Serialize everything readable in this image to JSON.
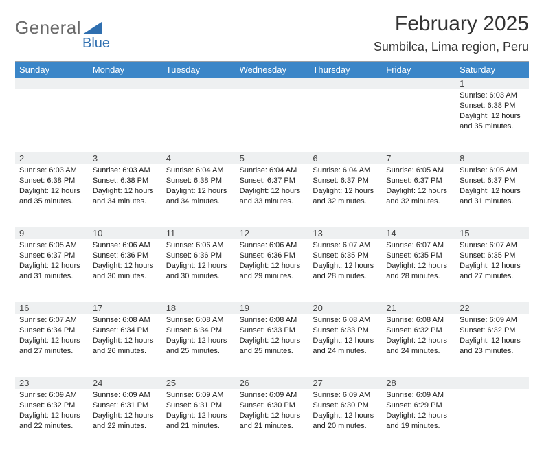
{
  "brand": {
    "part1": "General",
    "part2": "Blue"
  },
  "title": "February 2025",
  "location": "Sumbilca, Lima region, Peru",
  "colors": {
    "header_bar": "#3b86c8",
    "date_strip": "#eef0f1",
    "border": "#9aa0a6",
    "logo_gray": "#6a6a6a",
    "logo_blue": "#2f6fb0"
  },
  "daynames": [
    "Sunday",
    "Monday",
    "Tuesday",
    "Wednesday",
    "Thursday",
    "Friday",
    "Saturday"
  ],
  "weeks": [
    [
      null,
      null,
      null,
      null,
      null,
      null,
      {
        "n": "1",
        "sr": "6:03 AM",
        "ss": "6:38 PM",
        "dl": "12 hours and 35 minutes."
      }
    ],
    [
      {
        "n": "2",
        "sr": "6:03 AM",
        "ss": "6:38 PM",
        "dl": "12 hours and 35 minutes."
      },
      {
        "n": "3",
        "sr": "6:03 AM",
        "ss": "6:38 PM",
        "dl": "12 hours and 34 minutes."
      },
      {
        "n": "4",
        "sr": "6:04 AM",
        "ss": "6:38 PM",
        "dl": "12 hours and 34 minutes."
      },
      {
        "n": "5",
        "sr": "6:04 AM",
        "ss": "6:37 PM",
        "dl": "12 hours and 33 minutes."
      },
      {
        "n": "6",
        "sr": "6:04 AM",
        "ss": "6:37 PM",
        "dl": "12 hours and 32 minutes."
      },
      {
        "n": "7",
        "sr": "6:05 AM",
        "ss": "6:37 PM",
        "dl": "12 hours and 32 minutes."
      },
      {
        "n": "8",
        "sr": "6:05 AM",
        "ss": "6:37 PM",
        "dl": "12 hours and 31 minutes."
      }
    ],
    [
      {
        "n": "9",
        "sr": "6:05 AM",
        "ss": "6:37 PM",
        "dl": "12 hours and 31 minutes."
      },
      {
        "n": "10",
        "sr": "6:06 AM",
        "ss": "6:36 PM",
        "dl": "12 hours and 30 minutes."
      },
      {
        "n": "11",
        "sr": "6:06 AM",
        "ss": "6:36 PM",
        "dl": "12 hours and 30 minutes."
      },
      {
        "n": "12",
        "sr": "6:06 AM",
        "ss": "6:36 PM",
        "dl": "12 hours and 29 minutes."
      },
      {
        "n": "13",
        "sr": "6:07 AM",
        "ss": "6:35 PM",
        "dl": "12 hours and 28 minutes."
      },
      {
        "n": "14",
        "sr": "6:07 AM",
        "ss": "6:35 PM",
        "dl": "12 hours and 28 minutes."
      },
      {
        "n": "15",
        "sr": "6:07 AM",
        "ss": "6:35 PM",
        "dl": "12 hours and 27 minutes."
      }
    ],
    [
      {
        "n": "16",
        "sr": "6:07 AM",
        "ss": "6:34 PM",
        "dl": "12 hours and 27 minutes."
      },
      {
        "n": "17",
        "sr": "6:08 AM",
        "ss": "6:34 PM",
        "dl": "12 hours and 26 minutes."
      },
      {
        "n": "18",
        "sr": "6:08 AM",
        "ss": "6:34 PM",
        "dl": "12 hours and 25 minutes."
      },
      {
        "n": "19",
        "sr": "6:08 AM",
        "ss": "6:33 PM",
        "dl": "12 hours and 25 minutes."
      },
      {
        "n": "20",
        "sr": "6:08 AM",
        "ss": "6:33 PM",
        "dl": "12 hours and 24 minutes."
      },
      {
        "n": "21",
        "sr": "6:08 AM",
        "ss": "6:32 PM",
        "dl": "12 hours and 24 minutes."
      },
      {
        "n": "22",
        "sr": "6:09 AM",
        "ss": "6:32 PM",
        "dl": "12 hours and 23 minutes."
      }
    ],
    [
      {
        "n": "23",
        "sr": "6:09 AM",
        "ss": "6:32 PM",
        "dl": "12 hours and 22 minutes."
      },
      {
        "n": "24",
        "sr": "6:09 AM",
        "ss": "6:31 PM",
        "dl": "12 hours and 22 minutes."
      },
      {
        "n": "25",
        "sr": "6:09 AM",
        "ss": "6:31 PM",
        "dl": "12 hours and 21 minutes."
      },
      {
        "n": "26",
        "sr": "6:09 AM",
        "ss": "6:30 PM",
        "dl": "12 hours and 21 minutes."
      },
      {
        "n": "27",
        "sr": "6:09 AM",
        "ss": "6:30 PM",
        "dl": "12 hours and 20 minutes."
      },
      {
        "n": "28",
        "sr": "6:09 AM",
        "ss": "6:29 PM",
        "dl": "12 hours and 19 minutes."
      },
      null
    ]
  ],
  "labels": {
    "sunrise": "Sunrise:",
    "sunset": "Sunset:",
    "daylight": "Daylight:"
  }
}
